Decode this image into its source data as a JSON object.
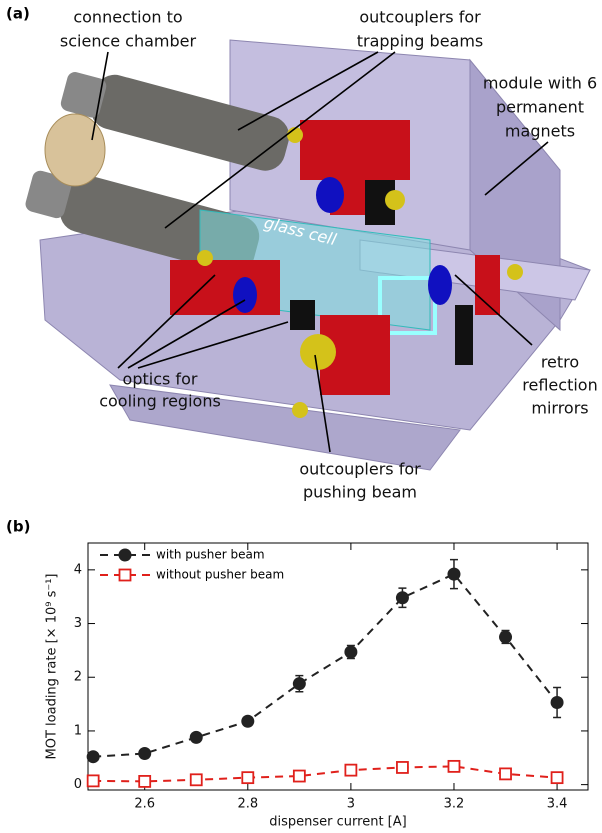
{
  "panel_a": {
    "label": "(a)",
    "annotations": [
      {
        "lines": [
          "connection to",
          "science chamber"
        ]
      },
      {
        "lines": [
          "outcouplers for",
          "trapping beams"
        ]
      },
      {
        "lines": [
          "module with 6",
          "permanent",
          "magnets"
        ]
      },
      {
        "lines": [
          "glass cell"
        ]
      },
      {
        "lines": [
          "optics for",
          "cooling regions"
        ]
      },
      {
        "lines": [
          "retro",
          "reflection",
          "mirrors"
        ]
      },
      {
        "lines": [
          "outcouplers for",
          "pushing beam"
        ]
      }
    ]
  },
  "chart_data": {
    "type": "line",
    "panel_label": "(b)",
    "xlabel": "dispenser current [A]",
    "ylabel": "MOT loading rate [× 10⁹ s⁻¹]",
    "x": [
      2.5,
      2.6,
      2.7,
      2.8,
      2.9,
      3.0,
      3.1,
      3.2,
      3.3,
      3.4
    ],
    "series": [
      {
        "name": "with pusher beam",
        "color": "#222222",
        "marker": "circle",
        "values": [
          0.52,
          0.58,
          0.88,
          1.18,
          1.88,
          2.47,
          3.48,
          3.92,
          2.75,
          1.53
        ],
        "errors": [
          0.05,
          0.05,
          0.05,
          0.06,
          0.15,
          0.12,
          0.18,
          0.27,
          0.12,
          0.28
        ]
      },
      {
        "name": "without pusher beam",
        "color": "#e0201b",
        "marker": "square",
        "values": [
          0.07,
          0.06,
          0.09,
          0.13,
          0.16,
          0.27,
          0.32,
          0.34,
          0.2,
          0.13
        ],
        "errors": [
          0.02,
          0.02,
          0.02,
          0.02,
          0.03,
          0.03,
          0.03,
          0.03,
          0.02,
          0.02
        ]
      }
    ],
    "xlim": [
      2.49,
      3.46
    ],
    "xticks": [
      2.6,
      2.8,
      3,
      3.2,
      3.4
    ],
    "ylim": [
      -0.1,
      4.5
    ],
    "yticks": [
      0,
      1,
      2,
      3,
      4
    ],
    "legend": "upper left",
    "grid": false
  }
}
